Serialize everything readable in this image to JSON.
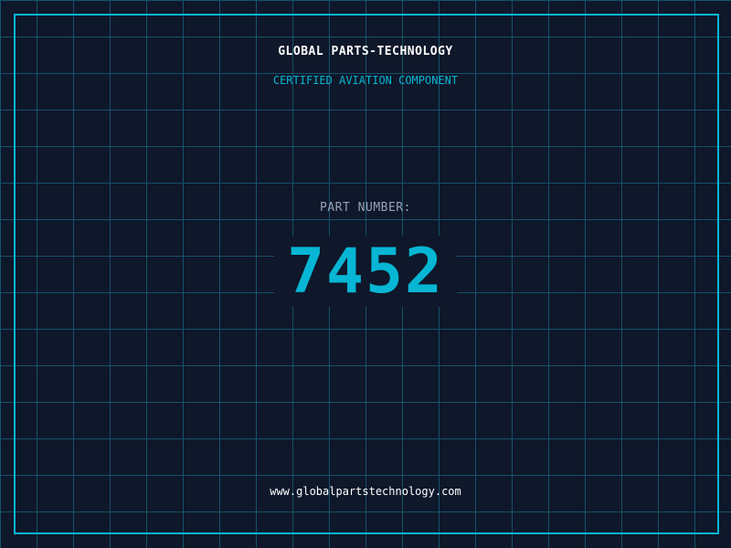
{
  "header": {
    "title": "GLOBAL PARTS-TECHNOLOGY",
    "subtitle": "CERTIFIED AVIATION COMPONENT"
  },
  "part": {
    "label": "PART NUMBER:",
    "number": "7452"
  },
  "footer": {
    "url": "www.globalpartstechnology.com"
  },
  "colors": {
    "background": "#0f172a",
    "accent": "#06b6d4",
    "grid": "#155e75"
  }
}
